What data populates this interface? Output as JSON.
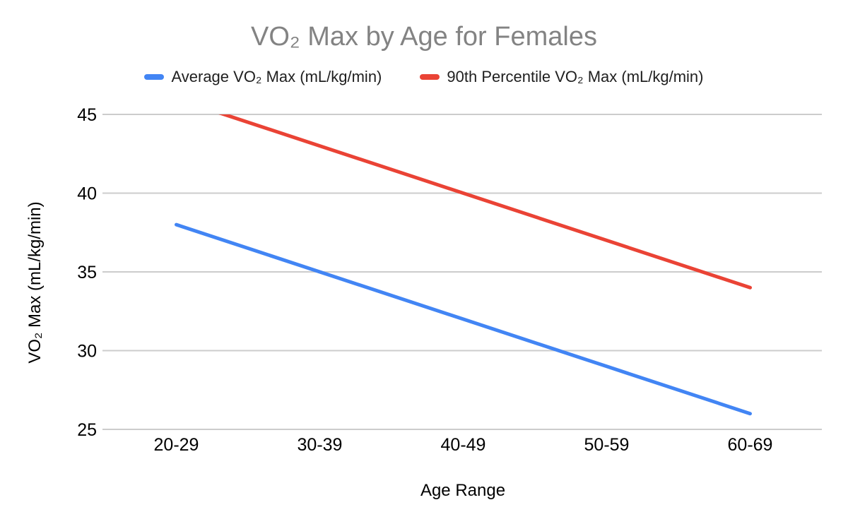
{
  "chart_data": {
    "type": "line",
    "title": "VO₂ Max by Age for Females",
    "xlabel": "Age Range",
    "ylabel": "VO₂ Max (mL/kg/min)",
    "categories": [
      "20-29",
      "30-39",
      "40-49",
      "50-59",
      "60-69"
    ],
    "series": [
      {
        "name": "Average VO₂ Max (mL/kg/min)",
        "color": "#4285F4",
        "values": [
          38,
          35,
          32,
          29,
          26
        ]
      },
      {
        "name": "90th Percentile VO₂ Max (mL/kg/min)",
        "color": "#EA4335",
        "values": [
          46,
          43,
          40,
          37,
          34
        ]
      }
    ],
    "ylim": [
      25,
      45
    ],
    "yticks": [
      25,
      30,
      35,
      40,
      45
    ],
    "grid": true,
    "legend_position": "top",
    "note": "First point of 90th percentile series (46) lies above the y-axis max and is clipped at the top of the plot area"
  },
  "colors": {
    "background": "#ffffff",
    "title_text": "#838383",
    "axis_text": "#000000",
    "legend_text": "#1f1f1f",
    "gridline": "#cccccc",
    "series_average": "#4285F4",
    "series_90th_percentile": "#EA4335"
  }
}
